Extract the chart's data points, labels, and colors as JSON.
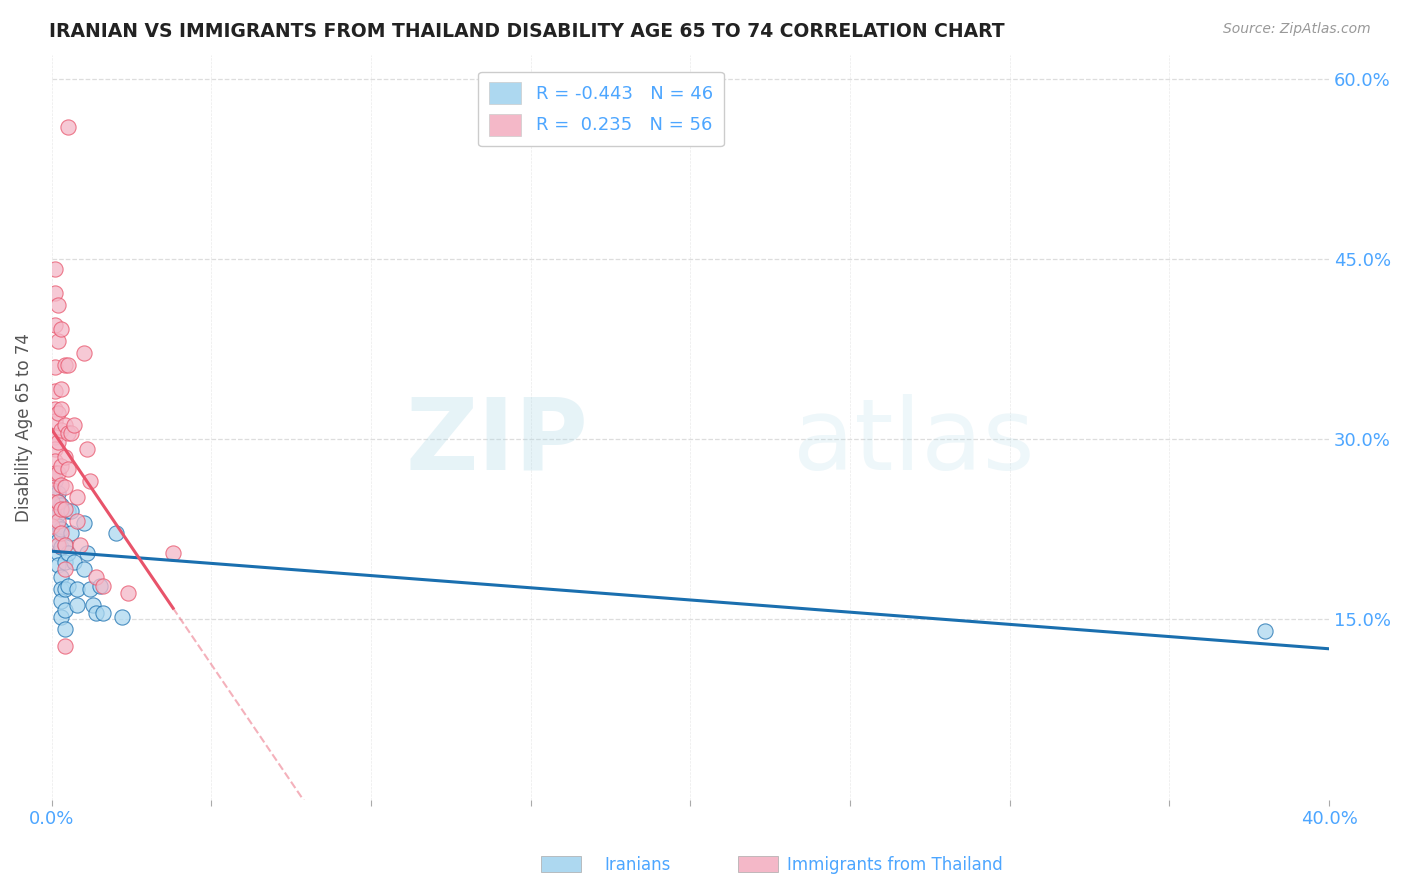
{
  "title": "IRANIAN VS IMMIGRANTS FROM THAILAND DISABILITY AGE 65 TO 74 CORRELATION CHART",
  "source": "Source: ZipAtlas.com",
  "ylabel": "Disability Age 65 to 74",
  "xmin": 0.0,
  "xmax": 0.4,
  "ymin": 0.0,
  "ymax": 0.62,
  "yticks": [
    0.15,
    0.3,
    0.45,
    0.6
  ],
  "ytick_labels": [
    "15.0%",
    "30.0%",
    "45.0%",
    "60.0%"
  ],
  "xticks": [
    0.0,
    0.05,
    0.1,
    0.15,
    0.2,
    0.25,
    0.3,
    0.35,
    0.4
  ],
  "xtick_labels": [
    "0.0%",
    "",
    "",
    "",
    "",
    "",
    "",
    "",
    "40.0%"
  ],
  "iranians_R": -0.443,
  "iranians_N": 46,
  "thailand_R": 0.235,
  "thailand_N": 56,
  "iranians_color": "#add8f0",
  "thailand_color": "#f4b8c8",
  "iranians_line_color": "#1a6faf",
  "thailand_line_color": "#e8536a",
  "iranians_scatter": [
    [
      0.0,
      0.27
    ],
    [
      0.001,
      0.265
    ],
    [
      0.001,
      0.255
    ],
    [
      0.001,
      0.25
    ],
    [
      0.001,
      0.245
    ],
    [
      0.001,
      0.238
    ],
    [
      0.001,
      0.228
    ],
    [
      0.002,
      0.255
    ],
    [
      0.002,
      0.248
    ],
    [
      0.002,
      0.238
    ],
    [
      0.002,
      0.228
    ],
    [
      0.002,
      0.222
    ],
    [
      0.002,
      0.215
    ],
    [
      0.002,
      0.205
    ],
    [
      0.002,
      0.195
    ],
    [
      0.003,
      0.245
    ],
    [
      0.003,
      0.225
    ],
    [
      0.003,
      0.21
    ],
    [
      0.003,
      0.185
    ],
    [
      0.003,
      0.175
    ],
    [
      0.003,
      0.165
    ],
    [
      0.003,
      0.152
    ],
    [
      0.004,
      0.212
    ],
    [
      0.004,
      0.198
    ],
    [
      0.004,
      0.175
    ],
    [
      0.004,
      0.158
    ],
    [
      0.004,
      0.142
    ],
    [
      0.005,
      0.24
    ],
    [
      0.005,
      0.205
    ],
    [
      0.005,
      0.178
    ],
    [
      0.006,
      0.24
    ],
    [
      0.006,
      0.222
    ],
    [
      0.007,
      0.198
    ],
    [
      0.008,
      0.175
    ],
    [
      0.008,
      0.162
    ],
    [
      0.01,
      0.23
    ],
    [
      0.01,
      0.192
    ],
    [
      0.011,
      0.205
    ],
    [
      0.012,
      0.175
    ],
    [
      0.013,
      0.162
    ],
    [
      0.014,
      0.155
    ],
    [
      0.015,
      0.178
    ],
    [
      0.016,
      0.155
    ],
    [
      0.02,
      0.222
    ],
    [
      0.022,
      0.152
    ],
    [
      0.38,
      0.14
    ]
  ],
  "thailand_scatter": [
    [
      0.0,
      0.268
    ],
    [
      0.0,
      0.258
    ],
    [
      0.0,
      0.248
    ],
    [
      0.0,
      0.238
    ],
    [
      0.0,
      0.228
    ],
    [
      0.001,
      0.442
    ],
    [
      0.001,
      0.422
    ],
    [
      0.001,
      0.395
    ],
    [
      0.001,
      0.36
    ],
    [
      0.001,
      0.34
    ],
    [
      0.001,
      0.325
    ],
    [
      0.001,
      0.315
    ],
    [
      0.001,
      0.302
    ],
    [
      0.001,
      0.292
    ],
    [
      0.001,
      0.282
    ],
    [
      0.001,
      0.272
    ],
    [
      0.002,
      0.412
    ],
    [
      0.002,
      0.382
    ],
    [
      0.002,
      0.322
    ],
    [
      0.002,
      0.298
    ],
    [
      0.002,
      0.272
    ],
    [
      0.002,
      0.248
    ],
    [
      0.002,
      0.232
    ],
    [
      0.002,
      0.212
    ],
    [
      0.003,
      0.392
    ],
    [
      0.003,
      0.342
    ],
    [
      0.003,
      0.325
    ],
    [
      0.003,
      0.308
    ],
    [
      0.003,
      0.278
    ],
    [
      0.003,
      0.262
    ],
    [
      0.003,
      0.242
    ],
    [
      0.003,
      0.222
    ],
    [
      0.004,
      0.362
    ],
    [
      0.004,
      0.312
    ],
    [
      0.004,
      0.285
    ],
    [
      0.004,
      0.26
    ],
    [
      0.004,
      0.242
    ],
    [
      0.004,
      0.212
    ],
    [
      0.004,
      0.192
    ],
    [
      0.004,
      0.128
    ],
    [
      0.005,
      0.56
    ],
    [
      0.005,
      0.362
    ],
    [
      0.005,
      0.305
    ],
    [
      0.005,
      0.275
    ],
    [
      0.006,
      0.305
    ],
    [
      0.007,
      0.312
    ],
    [
      0.008,
      0.252
    ],
    [
      0.008,
      0.232
    ],
    [
      0.009,
      0.212
    ],
    [
      0.01,
      0.372
    ],
    [
      0.011,
      0.292
    ],
    [
      0.012,
      0.265
    ],
    [
      0.014,
      0.185
    ],
    [
      0.016,
      0.178
    ],
    [
      0.024,
      0.172
    ],
    [
      0.038,
      0.205
    ]
  ],
  "background_color": "#ffffff",
  "grid_color": "#dddddd",
  "title_color": "#222222",
  "axis_label_color": "#4da6ff",
  "watermark_zip": "ZIP",
  "watermark_atlas": "atlas"
}
